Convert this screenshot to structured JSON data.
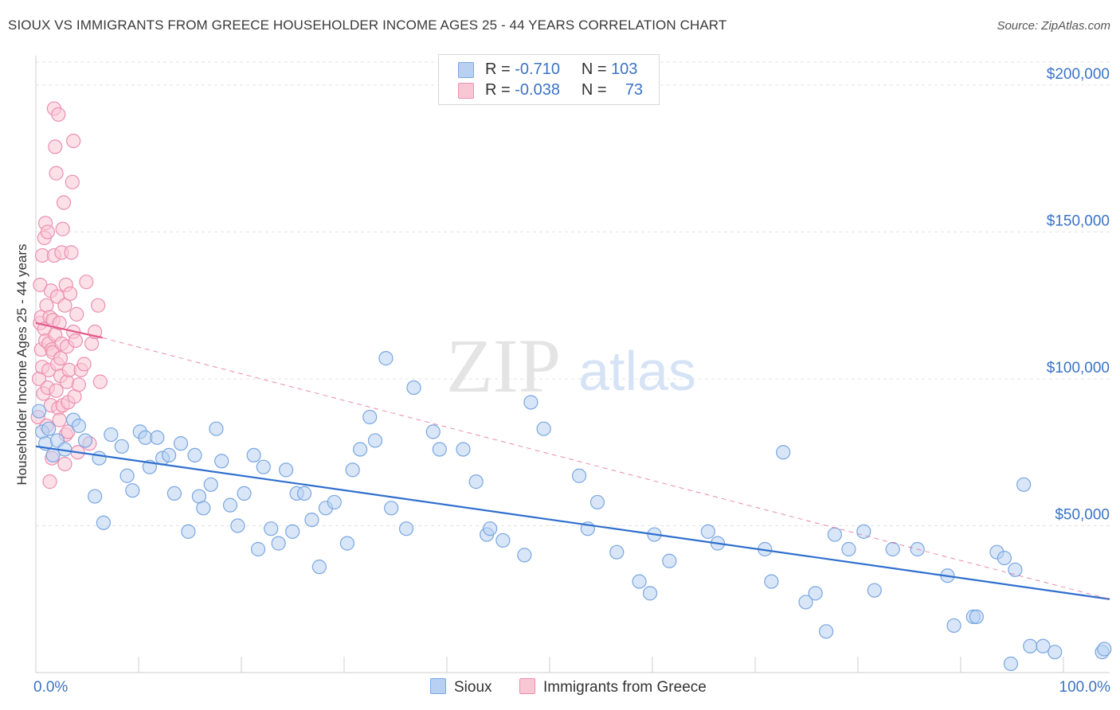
{
  "title": "SIOUX VS IMMIGRANTS FROM GREECE HOUSEHOLDER INCOME AGES 25 - 44 YEARS CORRELATION CHART",
  "source": "Source: ZipAtlas.com",
  "watermark": {
    "zip": "ZIP",
    "atlas": "atlas"
  },
  "legend": {
    "r_label": "R =",
    "n_label": "N =",
    "rows": [
      {
        "r": "-0.710",
        "n": "103",
        "color": "#b8d1f3",
        "border": "#7aa6e0"
      },
      {
        "r": "-0.038",
        "n": "73",
        "color": "#f9c6d6",
        "border": "#eb8fb0"
      }
    ]
  },
  "bottom_legend": [
    {
      "label": "Sioux",
      "color": "#b8d1f3",
      "border": "#7aa6e0"
    },
    {
      "label": "Immigrants from Greece",
      "color": "#f9c6d6",
      "border": "#eb8fb0"
    }
  ],
  "chart_data": {
    "type": "scatter",
    "title": "SIOUX VS IMMIGRANTS FROM GREECE HOUSEHOLDER INCOME AGES 25 - 44 YEARS CORRELATION CHART",
    "xlabel": "",
    "ylabel": "Householder Income Ages 25 - 44 years",
    "xlim": [
      0,
      100
    ],
    "ylim": [
      0,
      210000
    ],
    "x_tick_labels": [
      "0.0%",
      "100.0%"
    ],
    "y_ticks": [
      50000,
      100000,
      150000,
      200000
    ],
    "y_tick_labels": [
      "$50,000",
      "$100,000",
      "$150,000",
      "$200,000"
    ],
    "grid": "horizontal dashed",
    "legend_position": "top-center",
    "series": [
      {
        "name": "Sioux",
        "color": "#7aa6e0",
        "fill": "#b8d1f3",
        "r": -0.71,
        "n": 103,
        "trend": {
          "x": [
            0,
            100
          ],
          "y": [
            77000,
            25000
          ],
          "color": "#2f6fce"
        },
        "x": [
          0.3,
          0.6,
          0.9,
          1.2,
          1.6,
          2.0,
          2.7,
          3.5,
          4.0,
          4.6,
          5.5,
          5.9,
          6.3,
          7.0,
          8.0,
          8.5,
          9.0,
          9.7,
          10.2,
          10.6,
          11.3,
          11.8,
          12.4,
          12.9,
          13.5,
          14.2,
          14.8,
          15.2,
          15.6,
          16.3,
          16.8,
          17.3,
          18.1,
          18.8,
          19.4,
          20.3,
          20.7,
          21.2,
          21.9,
          22.6,
          23.3,
          23.9,
          24.3,
          25.0,
          25.7,
          26.4,
          27.0,
          27.8,
          29.0,
          29.5,
          30.2,
          31.1,
          31.6,
          32.6,
          33.1,
          34.5,
          35.2,
          37.0,
          37.6,
          39.8,
          41.0,
          42.0,
          42.3,
          43.5,
          45.5,
          46.1,
          47.3,
          50.6,
          51.4,
          52.3,
          54.1,
          56.2,
          57.2,
          57.6,
          59.0,
          62.6,
          63.5,
          67.9,
          68.5,
          69.6,
          71.7,
          72.6,
          73.6,
          74.4,
          75.7,
          77.1,
          78.1,
          79.8,
          82.1,
          84.9,
          85.5,
          87.3,
          87.6,
          89.5,
          90.2,
          90.8,
          91.2,
          92.0,
          92.6,
          93.8,
          94.9,
          99.3,
          99.5
        ],
        "y": [
          89000,
          82000,
          78000,
          83000,
          74000,
          79000,
          76000,
          86000,
          84000,
          79000,
          60000,
          73000,
          51000,
          81000,
          77000,
          67000,
          62000,
          82000,
          80000,
          70000,
          80000,
          73000,
          74000,
          61000,
          78000,
          48000,
          74000,
          60000,
          56000,
          64000,
          83000,
          72000,
          57000,
          50000,
          61000,
          74000,
          42000,
          70000,
          49000,
          44000,
          69000,
          48000,
          61000,
          61000,
          52000,
          36000,
          56000,
          58000,
          44000,
          69000,
          76000,
          87000,
          79000,
          107000,
          56000,
          49000,
          97000,
          82000,
          76000,
          76000,
          65000,
          47000,
          49000,
          45000,
          40000,
          92000,
          83000,
          67000,
          49000,
          58000,
          41000,
          31000,
          27000,
          47000,
          38000,
          48000,
          44000,
          42000,
          31000,
          75000,
          24000,
          27000,
          14000,
          47000,
          42000,
          48000,
          28000,
          42000,
          42000,
          33000,
          16000,
          19000,
          19000,
          41000,
          39000,
          3000,
          35000,
          64000,
          9000,
          9000,
          7000,
          7000,
          8000
        ]
      },
      {
        "name": "Immigrants from Greece",
        "color": "#eb8fb0",
        "fill": "#f9c6d6",
        "r": -0.038,
        "n": 73,
        "trend": {
          "x": [
            0,
            6.2
          ],
          "y": [
            119000,
            114000
          ],
          "color": "#e05a8a",
          "extended": {
            "x": [
              6.2,
              100
            ],
            "y": [
              114000,
              25000
            ]
          }
        },
        "x": [
          0.2,
          0.3,
          0.4,
          0.4,
          0.5,
          0.5,
          0.6,
          0.6,
          0.7,
          0.8,
          0.8,
          0.9,
          0.9,
          1.0,
          1.0,
          1.1,
          1.1,
          1.2,
          1.2,
          1.3,
          1.3,
          1.4,
          1.4,
          1.5,
          1.5,
          1.6,
          1.6,
          1.7,
          1.7,
          1.8,
          1.8,
          1.9,
          1.9,
          2.0,
          2.0,
          2.1,
          2.1,
          2.2,
          2.2,
          2.3,
          2.3,
          2.4,
          2.4,
          2.5,
          2.5,
          2.6,
          2.7,
          2.7,
          2.8,
          2.8,
          2.9,
          2.9,
          3.0,
          3.0,
          3.1,
          3.2,
          3.3,
          3.4,
          3.5,
          3.5,
          3.6,
          3.7,
          3.8,
          3.9,
          4.0,
          4.2,
          4.5,
          4.7,
          5.0,
          5.2,
          5.5,
          5.8,
          6.0
        ],
        "y": [
          87000,
          100000,
          119000,
          132000,
          121000,
          110000,
          104000,
          142000,
          95000,
          117000,
          148000,
          113000,
          153000,
          84000,
          125000,
          97000,
          150000,
          103000,
          112000,
          121000,
          65000,
          91000,
          130000,
          110000,
          73000,
          109000,
          120000,
          192000,
          142000,
          179000,
          115000,
          96000,
          170000,
          105000,
          128000,
          90000,
          190000,
          86000,
          119000,
          107000,
          101000,
          143000,
          112000,
          91000,
          151000,
          160000,
          125000,
          71000,
          132000,
          81000,
          111000,
          99000,
          92000,
          82000,
          103000,
          129000,
          143000,
          167000,
          181000,
          116000,
          94000,
          113000,
          122000,
          75000,
          98000,
          103000,
          105000,
          133000,
          78000,
          112000,
          116000,
          125000,
          99000
        ]
      }
    ]
  }
}
